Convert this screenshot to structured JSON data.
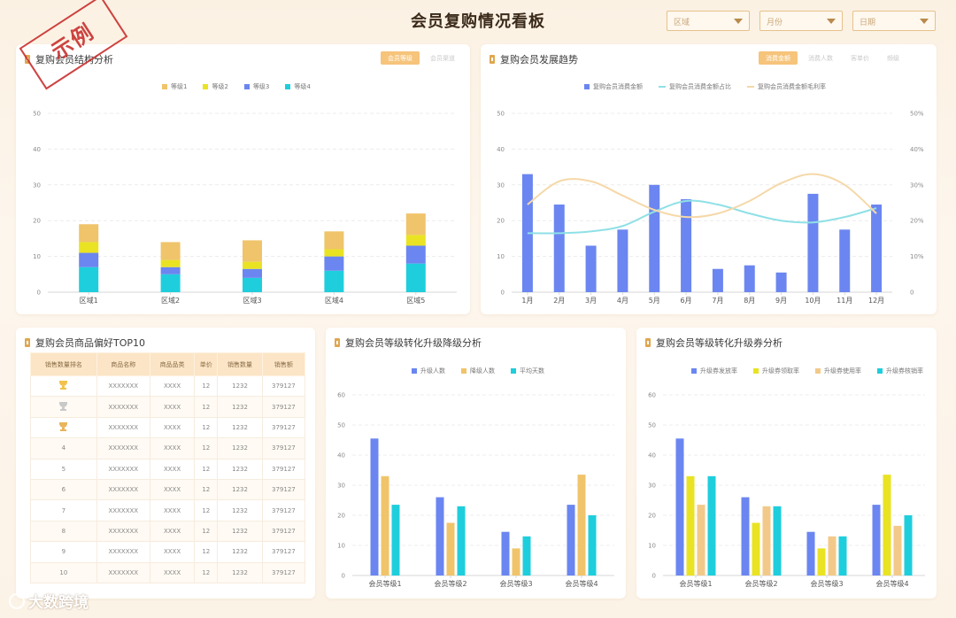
{
  "title": "会员复购情况看板",
  "filters": [
    {
      "label": "区域"
    },
    {
      "label": "月份"
    },
    {
      "label": "日期"
    }
  ],
  "stamp": "示例",
  "watermark": "大数跨境",
  "colors": {
    "accent": "#f6c47b",
    "blue": "#6b86f0",
    "gold": "#f0c46b",
    "yellow": "#e9e323",
    "cyan": "#1fcedc",
    "orange": "#f3c98a"
  },
  "panel1": {
    "title": "复购会员结构分析",
    "tabs": [
      "会员等级",
      "会员渠道"
    ],
    "chart_data": {
      "type": "bar",
      "stacked": true,
      "categories": [
        "区域1",
        "区域2",
        "区域3",
        "区域4",
        "区域5"
      ],
      "series": [
        {
          "name": "等级1",
          "color": "#f0c46b",
          "values": [
            5,
            5,
            6,
            5,
            6
          ]
        },
        {
          "name": "等级2",
          "color": "#e9e323",
          "values": [
            3,
            2,
            2,
            2,
            3
          ]
        },
        {
          "name": "等级3",
          "color": "#6b86f0",
          "values": [
            4,
            2,
            2.5,
            4,
            5
          ]
        },
        {
          "name": "等级4",
          "color": "#1fcedc",
          "values": [
            7,
            5,
            4,
            6,
            8
          ]
        }
      ],
      "yticks": [
        "0",
        "10",
        "20",
        "30",
        "40",
        "50"
      ],
      "ylim": [
        0,
        50
      ]
    }
  },
  "panel2": {
    "title": "复购会员发展趋势",
    "tabs": [
      "消费金额",
      "消费人数",
      "客单价",
      "频级"
    ],
    "chart_data": {
      "type": "bar+line",
      "categories": [
        "1月",
        "2月",
        "3月",
        "4月",
        "5月",
        "6月",
        "7月",
        "8月",
        "9月",
        "10月",
        "11月",
        "12月"
      ],
      "series": [
        {
          "name": "复购会员消费金额",
          "type": "bar",
          "color": "#6b86f0",
          "values": [
            33,
            24.5,
            13,
            17.5,
            30,
            26,
            6.5,
            7.5,
            5.5,
            27.5,
            17.5,
            24.5
          ]
        },
        {
          "name": "复购会员消费金额占比",
          "type": "line",
          "color": "#8fe0e6",
          "values": [
            16.5,
            16.5,
            17,
            18.5,
            22.5,
            25.5,
            24.5,
            22,
            20,
            19.5,
            21,
            23.5
          ]
        },
        {
          "name": "复购会员消费金额毛利率",
          "type": "line",
          "color": "#f5d8a8",
          "values": [
            24.5,
            31,
            31,
            27,
            23,
            21,
            22,
            25.5,
            30.5,
            33,
            30,
            22
          ]
        }
      ],
      "yticks": [
        "0",
        "10",
        "20",
        "30",
        "40",
        "50"
      ],
      "ylim": [
        0,
        50
      ],
      "y2ticks": [
        "0",
        "10%",
        "20%",
        "30%",
        "40%",
        "50%"
      ],
      "y2lim": [
        0,
        50
      ]
    }
  },
  "panel3": {
    "title": "复购会员商品偏好TOP10",
    "columns": [
      "销售数量排名",
      "商品名称",
      "商品品类",
      "单价",
      "销售数量",
      "销售额"
    ],
    "rows": [
      {
        "rank": "",
        "medal": "gold",
        "name": "XXXXXXX",
        "cat": "XXXX",
        "price": "12",
        "qty": "1232",
        "sales": "379127"
      },
      {
        "rank": "",
        "medal": "silver",
        "name": "XXXXXXX",
        "cat": "XXXX",
        "price": "12",
        "qty": "1232",
        "sales": "379127"
      },
      {
        "rank": "",
        "medal": "bronze",
        "name": "XXXXXXX",
        "cat": "XXXX",
        "price": "12",
        "qty": "1232",
        "sales": "379127"
      },
      {
        "rank": "4",
        "medal": "",
        "name": "XXXXXXX",
        "cat": "XXXX",
        "price": "12",
        "qty": "1232",
        "sales": "379127"
      },
      {
        "rank": "5",
        "medal": "",
        "name": "XXXXXXX",
        "cat": "XXXX",
        "price": "12",
        "qty": "1232",
        "sales": "379127"
      },
      {
        "rank": "6",
        "medal": "",
        "name": "XXXXXXX",
        "cat": "XXXX",
        "price": "12",
        "qty": "1232",
        "sales": "379127"
      },
      {
        "rank": "7",
        "medal": "",
        "name": "XXXXXXX",
        "cat": "XXXX",
        "price": "12",
        "qty": "1232",
        "sales": "379127"
      },
      {
        "rank": "8",
        "medal": "",
        "name": "XXXXXXX",
        "cat": "XXXX",
        "price": "12",
        "qty": "1232",
        "sales": "379127"
      },
      {
        "rank": "9",
        "medal": "",
        "name": "XXXXXXX",
        "cat": "XXXX",
        "price": "12",
        "qty": "1232",
        "sales": "379127"
      },
      {
        "rank": "10",
        "medal": "",
        "name": "XXXXXXX",
        "cat": "XXXX",
        "price": "12",
        "qty": "1232",
        "sales": "379127"
      }
    ]
  },
  "panel4": {
    "title": "复购会员等级转化升级降级分析",
    "chart_data": {
      "type": "bar",
      "categories": [
        "会员等级1",
        "会员等级2",
        "会员等级3",
        "会员等级4"
      ],
      "series": [
        {
          "name": "升级人数",
          "color": "#6b86f0",
          "values": [
            45.5,
            26,
            14.5,
            23.5
          ]
        },
        {
          "name": "降级人数",
          "color": "#f0c46b",
          "values": [
            33,
            17.5,
            9,
            33.5
          ]
        },
        {
          "name": "平均天数",
          "color": "#1fcedc",
          "values": [
            23.5,
            23,
            13,
            20
          ]
        }
      ],
      "yticks": [
        "0",
        "10",
        "20",
        "30",
        "40",
        "50",
        "60"
      ],
      "ylim": [
        0,
        60
      ]
    }
  },
  "panel5": {
    "title": "复购会员等级转化升级券分析",
    "chart_data": {
      "type": "bar",
      "categories": [
        "会员等级1",
        "会员等级2",
        "会员等级3",
        "会员等级4"
      ],
      "series": [
        {
          "name": "升级券发放率",
          "color": "#6b86f0",
          "values": [
            45.5,
            26,
            14.5,
            23.5
          ]
        },
        {
          "name": "升级券领取率",
          "color": "#e9e323",
          "values": [
            33,
            17.5,
            9,
            33.5
          ]
        },
        {
          "name": "升级券使用率",
          "color": "#f3c98a",
          "values": [
            23.5,
            23,
            13,
            16.5
          ]
        },
        {
          "name": "升级券核销率",
          "color": "#1fcedc",
          "values": [
            33,
            23,
            13,
            20
          ]
        }
      ],
      "yticks": [
        "0",
        "10",
        "20",
        "30",
        "40",
        "50",
        "60"
      ],
      "ylim": [
        0,
        60
      ]
    }
  }
}
